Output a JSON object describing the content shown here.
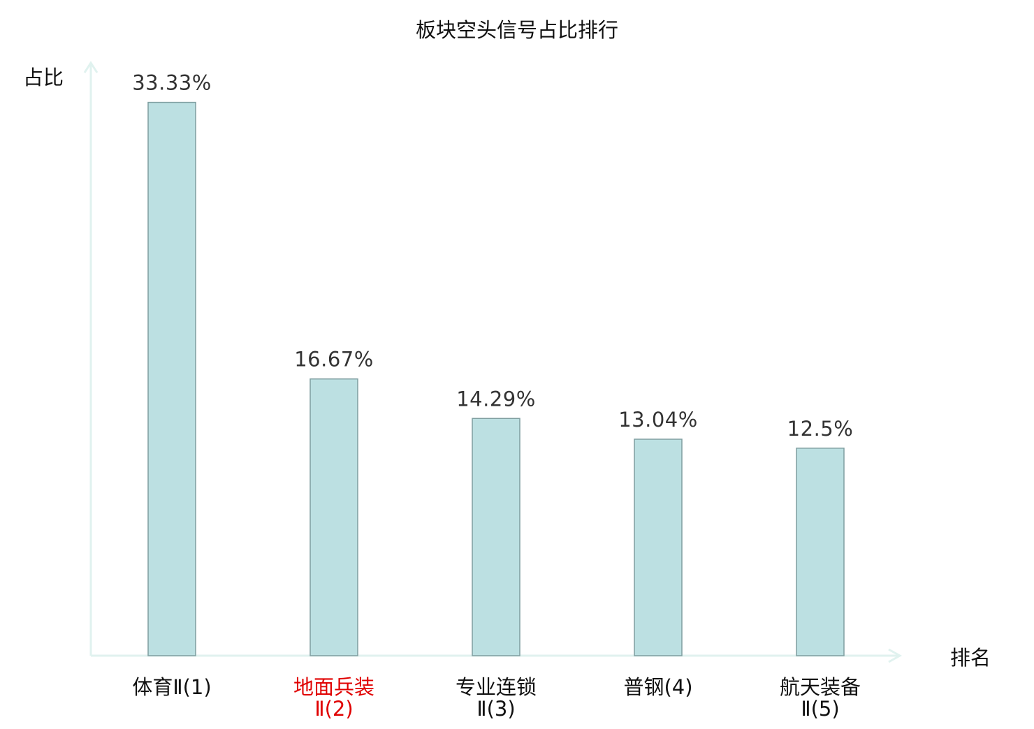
{
  "chart_data": {
    "type": "bar",
    "title": "板块空头信号占比排行",
    "ylabel": "占比",
    "xlabel": "排名",
    "ylim": [
      0,
      35.5
    ],
    "categories": [
      [
        "体育Ⅱ(1)"
      ],
      [
        "地面兵装",
        "Ⅱ(2)"
      ],
      [
        "专业连锁",
        "Ⅱ(3)"
      ],
      [
        "普钢(4)"
      ],
      [
        "航天装备",
        "Ⅱ(5)"
      ]
    ],
    "values": [
      33.33,
      16.67,
      14.29,
      13.04,
      12.5
    ],
    "value_labels": [
      "33.33%",
      "16.67%",
      "14.29%",
      "13.04%",
      "12.5%"
    ],
    "highlight_index": 1,
    "colors": {
      "bar_fill": "#bce0e2",
      "bar_stroke": "#7f9ea0",
      "axis": "#e0f2ef",
      "highlight_text": "#e00000",
      "text": "#111111",
      "value_text": "#333333"
    }
  }
}
